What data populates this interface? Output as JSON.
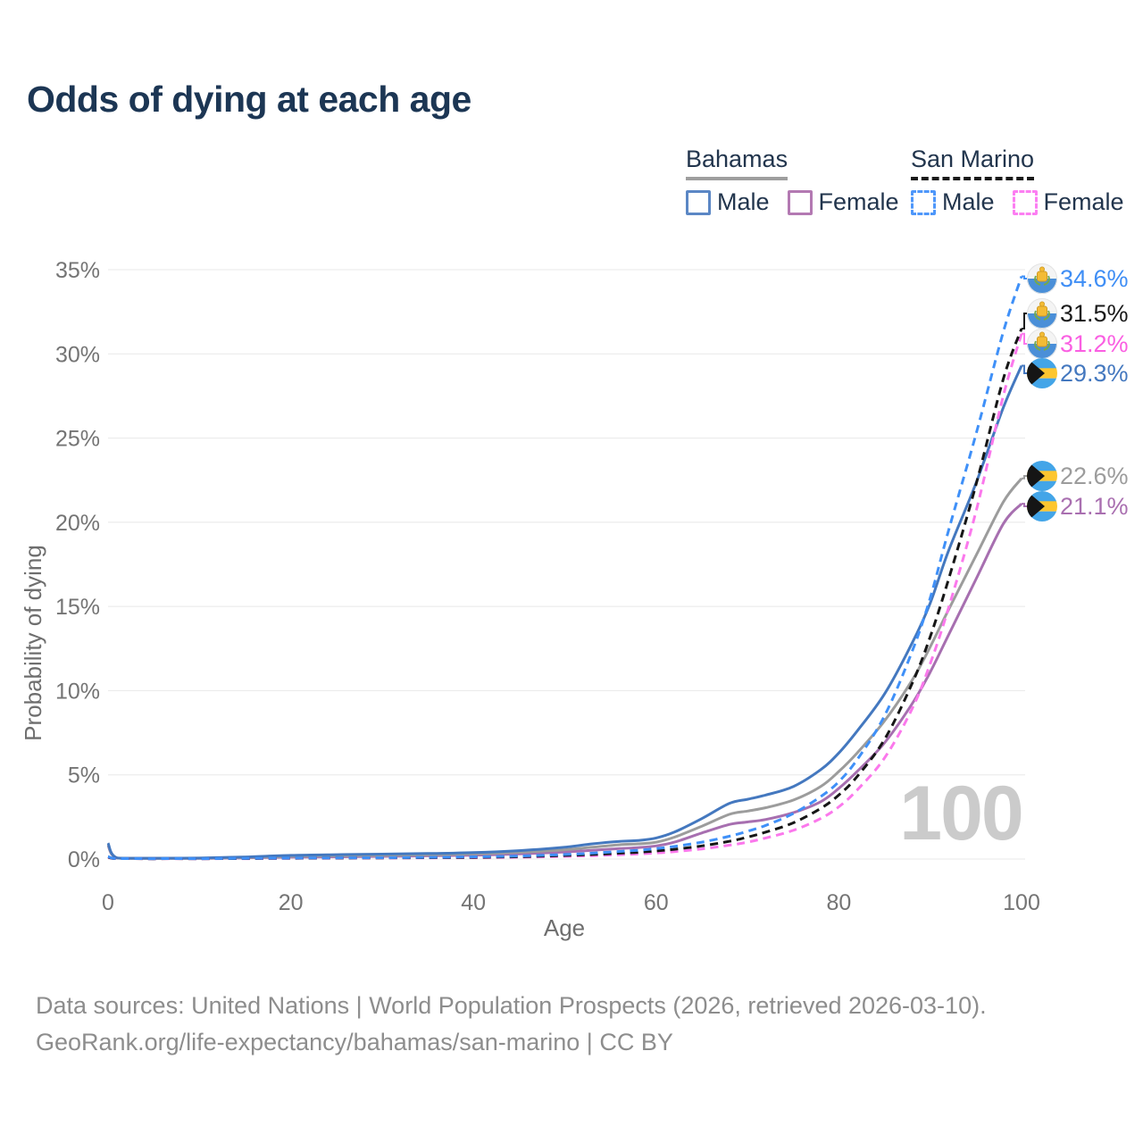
{
  "title": "Odds of dying at each age",
  "legend": {
    "groups": [
      {
        "name": "Bahamas",
        "style": "solid",
        "underline_color": "#9e9e9e",
        "items": [
          {
            "label": "Male",
            "color": "#5b87c5"
          },
          {
            "label": "Female",
            "color": "#b379b2"
          }
        ]
      },
      {
        "name": "San Marino",
        "style": "dashed",
        "underline_color": "#1a1a1a",
        "items": [
          {
            "label": "Male",
            "color": "#4e97fa"
          },
          {
            "label": "Female",
            "color": "#fc7ef2"
          }
        ]
      }
    ]
  },
  "hover_indicator": "100",
  "chart_data": {
    "type": "line",
    "title": "Odds of dying at each age",
    "xlabel": "Age",
    "ylabel": "Probability of dying",
    "xlim": [
      0,
      100
    ],
    "ylim": [
      0,
      35
    ],
    "x_ticks": [
      0,
      20,
      40,
      60,
      80,
      100
    ],
    "y_ticks": [
      0,
      5,
      10,
      15,
      20,
      25,
      30,
      35
    ],
    "y_tick_suffix": "%",
    "grid": true,
    "legend_position": "top-right",
    "x": [
      0,
      1,
      5,
      10,
      15,
      20,
      25,
      30,
      35,
      40,
      45,
      50,
      53,
      56,
      58,
      60,
      62,
      65,
      68,
      70,
      72,
      75,
      78,
      80,
      82,
      85,
      88,
      90,
      92,
      95,
      98,
      100
    ],
    "series": [
      {
        "id": "san-marino-male",
        "name": "San Marino Male",
        "country": "San Marino",
        "sex": "male",
        "color": "#3f90f8",
        "dash": "dashed",
        "values": [
          0.15,
          0.02,
          0.02,
          0.02,
          0.04,
          0.06,
          0.07,
          0.08,
          0.1,
          0.13,
          0.18,
          0.27,
          0.35,
          0.45,
          0.52,
          0.62,
          0.75,
          1.0,
          1.35,
          1.65,
          2.0,
          2.7,
          3.7,
          4.6,
          5.9,
          8.5,
          12.3,
          15.5,
          19.5,
          25.2,
          31.3,
          34.6
        ],
        "end": {
          "label": "34.6%",
          "color": "#3f8ef5",
          "flag": "san-marino"
        }
      },
      {
        "id": "san-marino-all",
        "name": "San Marino",
        "country": "San Marino",
        "sex": "both",
        "color": "#161616",
        "dash": "dashed",
        "values": [
          0.12,
          0.02,
          0.015,
          0.015,
          0.03,
          0.05,
          0.06,
          0.07,
          0.08,
          0.1,
          0.14,
          0.21,
          0.27,
          0.35,
          0.4,
          0.48,
          0.58,
          0.78,
          1.05,
          1.3,
          1.6,
          2.15,
          3.0,
          3.8,
          4.9,
          7.1,
          10.4,
          13.2,
          16.6,
          22.2,
          28.5,
          31.5
        ],
        "end": {
          "label": "31.5%",
          "color": "#1a1a1a",
          "flag": "san-marino"
        }
      },
      {
        "id": "san-marino-female",
        "name": "San Marino Female",
        "country": "San Marino",
        "sex": "female",
        "color": "#fb78ec",
        "dash": "dashed",
        "values": [
          0.1,
          0.02,
          0.01,
          0.01,
          0.02,
          0.04,
          0.05,
          0.06,
          0.07,
          0.08,
          0.11,
          0.16,
          0.2,
          0.26,
          0.3,
          0.36,
          0.44,
          0.6,
          0.82,
          1.0,
          1.25,
          1.7,
          2.4,
          3.1,
          4.1,
          6.0,
          8.9,
          11.6,
          14.9,
          20.6,
          27.5,
          31.2
        ],
        "end": {
          "label": "31.2%",
          "color": "#fa5fe2",
          "flag": "san-marino"
        }
      },
      {
        "id": "bahamas-male",
        "name": "Bahamas Male",
        "country": "Bahamas",
        "sex": "male",
        "color": "#4478bf",
        "dash": "solid",
        "values": [
          0.95,
          0.07,
          0.05,
          0.06,
          0.12,
          0.22,
          0.26,
          0.29,
          0.33,
          0.38,
          0.5,
          0.7,
          0.9,
          1.05,
          1.1,
          1.25,
          1.6,
          2.4,
          3.3,
          3.55,
          3.8,
          4.3,
          5.3,
          6.3,
          7.6,
          9.8,
          12.8,
          15.2,
          18.3,
          22.3,
          26.8,
          29.3
        ],
        "end": {
          "label": "29.3%",
          "color": "#4478bf",
          "flag": "bahamas"
        }
      },
      {
        "id": "bahamas-all",
        "name": "Bahamas",
        "country": "Bahamas",
        "sex": "both",
        "color": "#9c9c9c",
        "dash": "solid",
        "values": [
          0.85,
          0.06,
          0.04,
          0.05,
          0.09,
          0.16,
          0.19,
          0.22,
          0.25,
          0.3,
          0.4,
          0.55,
          0.7,
          0.85,
          0.9,
          1.0,
          1.3,
          1.95,
          2.65,
          2.85,
          3.05,
          3.5,
          4.3,
          5.2,
          6.3,
          8.2,
          10.6,
          12.6,
          14.8,
          18.0,
          21.2,
          22.6
        ],
        "end": {
          "label": "22.6%",
          "color": "#9c9c9c",
          "flag": "bahamas"
        }
      },
      {
        "id": "bahamas-female",
        "name": "Bahamas Female",
        "country": "Bahamas",
        "sex": "female",
        "color": "#a76fb0",
        "dash": "solid",
        "values": [
          0.8,
          0.06,
          0.04,
          0.04,
          0.07,
          0.11,
          0.13,
          0.16,
          0.19,
          0.23,
          0.3,
          0.42,
          0.52,
          0.62,
          0.68,
          0.78,
          1.0,
          1.55,
          2.05,
          2.2,
          2.35,
          2.75,
          3.4,
          4.2,
          5.2,
          6.9,
          9.2,
          11.1,
          13.3,
          16.6,
          19.9,
          21.1
        ],
        "end": {
          "label": "21.1%",
          "color": "#a96fb0",
          "flag": "bahamas"
        }
      }
    ]
  },
  "footer": {
    "line1": "Data sources: United Nations | World Population Prospects (2026, retrieved 2026-03-10).",
    "line2": "GeoRank.org/life-expectancy/bahamas/san-marino | CC BY"
  }
}
